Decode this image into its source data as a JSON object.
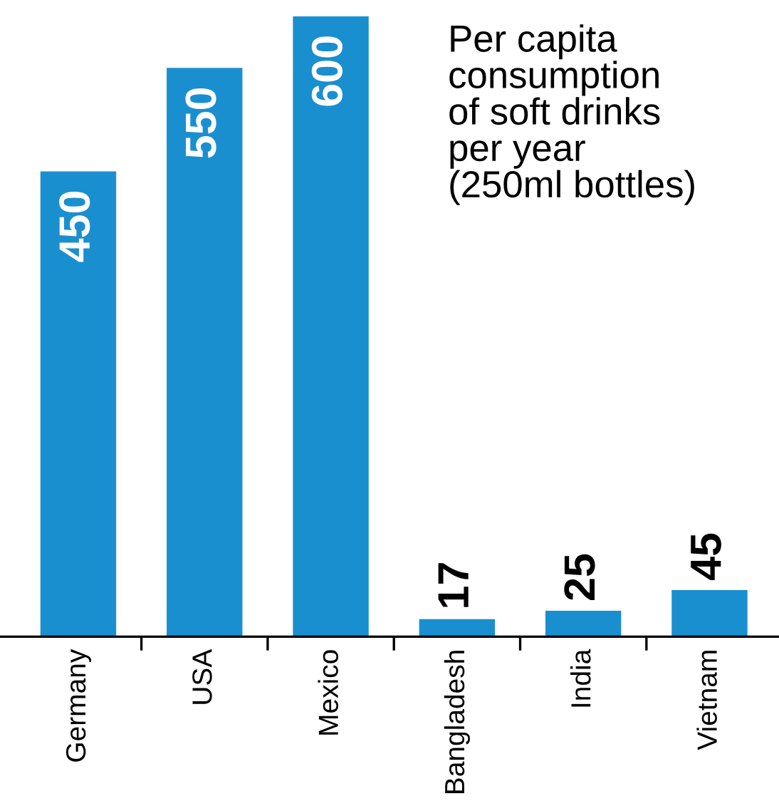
{
  "chart_data": {
    "type": "bar",
    "title": "Per capita\nconsumption\nof soft drinks\nper year\n(250ml bottles)",
    "categories": [
      "Germany",
      "USA",
      "Mexico",
      "Bangladesh",
      "India",
      "Vietnam"
    ],
    "values": [
      450,
      550,
      600,
      17,
      25,
      45
    ],
    "color": "#1a8fd0",
    "data_labels": true
  }
}
